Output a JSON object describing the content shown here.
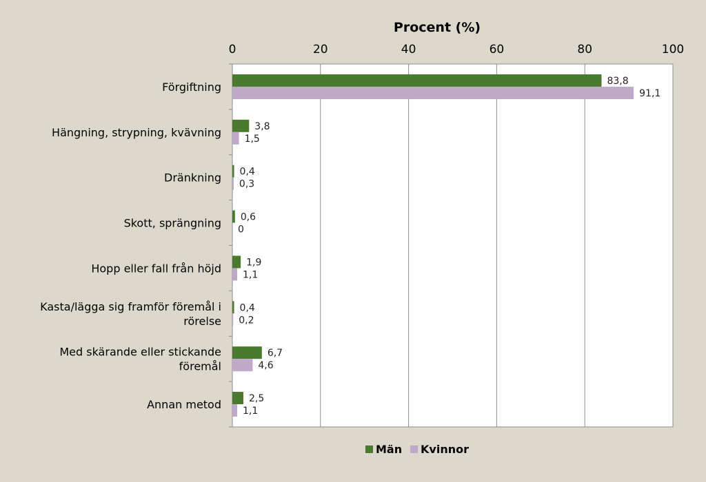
{
  "chart_data": {
    "type": "bar",
    "orientation": "horizontal",
    "title": "",
    "xlabel": "Procent (%)",
    "ylabel": "",
    "xlim": [
      0,
      100
    ],
    "xticks": [
      0,
      20,
      40,
      60,
      80,
      100
    ],
    "xtick_labels": [
      "0",
      "20",
      "40",
      "60",
      "80",
      "100"
    ],
    "grid": true,
    "legend_position": "bottom",
    "categories": [
      [
        "Förgiftning"
      ],
      [
        "Hängning, strypning, kvävning"
      ],
      [
        "Dränkning"
      ],
      [
        "Skott, sprängning"
      ],
      [
        "Hopp eller fall från höjd"
      ],
      [
        "Kasta/lägga sig framför föremål i",
        "rörelse"
      ],
      [
        "Med skärande eller stickande",
        "föremål"
      ],
      [
        "Annan metod"
      ]
    ],
    "series": [
      {
        "name": "Män",
        "color": "#4a7a2e",
        "values": [
          83.8,
          3.8,
          0.4,
          0.6,
          1.9,
          0.4,
          6.7,
          2.5
        ],
        "labels": [
          "83,8",
          "3,8",
          "0,4",
          "0,6",
          "1,9",
          "0,4",
          "6,7",
          "2,5"
        ]
      },
      {
        "name": "Kvinnor",
        "color": "#bfa8c8",
        "values": [
          91.1,
          1.5,
          0.3,
          0,
          1.1,
          0.2,
          4.6,
          1.1
        ],
        "labels": [
          "91,1",
          "1,5",
          "0,3",
          "0",
          "1,1",
          "0,2",
          "4,6",
          "1,1"
        ]
      }
    ]
  }
}
